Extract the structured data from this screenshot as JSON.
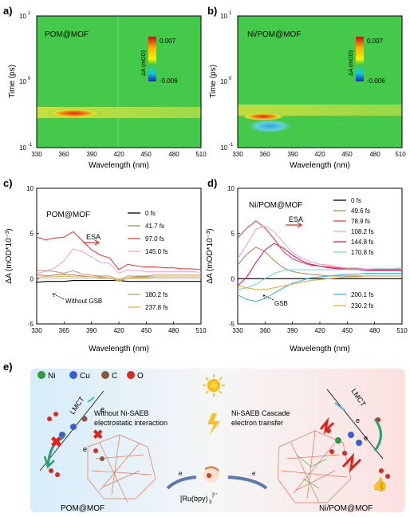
{
  "panel_labels": [
    "a)",
    "b)",
    "c)",
    "d)",
    "e)"
  ],
  "colors": {
    "map_bg": "#45c94a",
    "trace_0fs": "#000000",
    "trace_41": "#b58a5a",
    "trace_97": "#e8443a",
    "trace_145": "#f2a6d6",
    "trace_180": "#c8a070",
    "trace_237": "#e0b040",
    "d_49": "#b58a5a",
    "d_78": "#e8443a",
    "d_108": "#f1a1d3",
    "d_144": "#d81b7a",
    "d_170": "#7ad3d6",
    "d_200": "#3ab7e0",
    "d_230": "#e0b040"
  },
  "panel_a": {
    "label": "POM@MOF",
    "ylabel": "Time (ps)",
    "xlabel": "Wavelength (nm)",
    "xticks": [
      "330",
      "360",
      "390",
      "420",
      "450",
      "480",
      "510"
    ],
    "yticks": [
      "10",
      "10",
      "10"
    ],
    "yexp": [
      "1",
      "0",
      "-1"
    ],
    "cbar_label": "ΔA (mOD)",
    "cbar_max": "0.007",
    "cbar_min": "-0.006"
  },
  "panel_b": {
    "label": "Ni/POM@MOF",
    "ylabel": "Time (ps)",
    "xlabel": "Wavelength (nm)",
    "xticks": [
      "330",
      "360",
      "390",
      "420",
      "450",
      "480",
      "510"
    ],
    "yticks": [
      "10",
      "10",
      "10"
    ],
    "yexp": [
      "1",
      "0",
      "-1"
    ],
    "cbar_label": "ΔA (mOD)",
    "cbar_max": "0.007",
    "cbar_min": "-0.006"
  },
  "chart_data": [
    {
      "type": "heatmap",
      "title": "POM@MOF",
      "xlabel": "Wavelength (nm)",
      "ylabel": "Time (ps)",
      "xlim": [
        330,
        510
      ],
      "ylim": [
        0.1,
        10
      ],
      "y_scale": "log",
      "colorbar_range": [
        -0.006,
        0.007
      ],
      "features": [
        {
          "center_nm": 375,
          "center_ps": 0.33,
          "sign": "positive"
        }
      ]
    },
    {
      "type": "heatmap",
      "title": "Ni/POM@MOF",
      "xlabel": "Wavelength (nm)",
      "ylabel": "Time (ps)",
      "xlim": [
        330,
        510
      ],
      "ylim": [
        0.1,
        10
      ],
      "y_scale": "log",
      "colorbar_range": [
        -0.006,
        0.007
      ],
      "features": [
        {
          "center_nm": 350,
          "center_ps": 0.3,
          "sign": "positive"
        },
        {
          "center_nm": 365,
          "center_ps": 0.25,
          "sign": "negative"
        }
      ]
    },
    {
      "type": "line",
      "title": "POM@MOF",
      "xlabel": "Wavelength (nm)",
      "ylabel": "ΔA (mOD*10⁻³)",
      "xlim": [
        330,
        510
      ],
      "ylim": [
        -5,
        10
      ],
      "xticks": [
        "330",
        "365",
        "390",
        "420",
        "450",
        "480",
        "510"
      ],
      "yticks": [
        "-5",
        "0",
        "5",
        "10"
      ],
      "annotations": [
        "ESA",
        "Without GSB"
      ],
      "x": [
        330,
        340,
        350,
        360,
        370,
        380,
        390,
        400,
        410,
        420,
        430,
        440,
        450,
        460,
        470,
        480,
        490,
        500,
        510
      ],
      "series": [
        {
          "name": "0 fs",
          "values": [
            -0.4,
            -0.3,
            -0.3,
            -0.3,
            -0.2,
            -0.2,
            -0.2,
            -0.2,
            -0.2,
            -0.2,
            -0.3,
            -0.3,
            -0.3,
            -0.3,
            -0.3,
            -0.3,
            -0.3,
            -0.3,
            -0.3
          ]
        },
        {
          "name": "41.7 fs",
          "values": [
            0.5,
            0.3,
            0.4,
            0.5,
            0.4,
            0.3,
            0.2,
            0.2,
            0.1,
            -0.3,
            0.1,
            0.2,
            0.2,
            0.2,
            0.2,
            0.2,
            0.2,
            0.2,
            0.2
          ]
        },
        {
          "name": "97.0 fs",
          "values": [
            4.6,
            4.3,
            4.5,
            4.6,
            5.2,
            4.2,
            3.2,
            2.6,
            2.3,
            1.0,
            1.6,
            1.4,
            1.3,
            1.3,
            1.2,
            1.2,
            1.1,
            1.1,
            1.0
          ]
        },
        {
          "name": "145.0 fs",
          "values": [
            0.6,
            0.8,
            1.2,
            2.0,
            3.3,
            3.0,
            2.4,
            1.8,
            1.7,
            0.6,
            1.0,
            0.9,
            0.8,
            0.8,
            0.8,
            0.8,
            0.8,
            0.8,
            0.7
          ]
        },
        {
          "name": "180.2 fs",
          "values": [
            0.9,
            0.9,
            0.8,
            0.6,
            0.9,
            0.5,
            0.4,
            0.3,
            0.3,
            -0.1,
            0.3,
            0.3,
            0.3,
            0.4,
            0.4,
            0.4,
            0.4,
            0.4,
            0.4
          ]
        },
        {
          "name": "237.8 fs",
          "values": [
            0.2,
            0.2,
            0.2,
            0.3,
            0.2,
            0.2,
            0.2,
            0.1,
            0.1,
            -0.2,
            0.1,
            0.1,
            0.1,
            0.2,
            0.2,
            0.2,
            0.2,
            0.2,
            0.2
          ]
        }
      ]
    },
    {
      "type": "line",
      "title": "Ni/POM@MOF",
      "xlabel": "Wavelength (nm)",
      "ylabel": "ΔA (mOD*10⁻³)",
      "xlim": [
        330,
        510
      ],
      "ylim": [
        -5,
        10
      ],
      "xticks": [
        "330",
        "360",
        "390",
        "420",
        "450",
        "480",
        "510"
      ],
      "yticks": [
        "-5",
        "0",
        "5",
        "10"
      ],
      "annotations": [
        "ESA",
        "GSB"
      ],
      "x": [
        330,
        340,
        350,
        360,
        370,
        380,
        390,
        400,
        410,
        420,
        430,
        440,
        450,
        460,
        470,
        480,
        490,
        500,
        510
      ],
      "series": [
        {
          "name": "0 fs",
          "values": [
            0.0,
            0.0,
            0.0,
            0.0,
            0.0,
            0.0,
            0.0,
            0.0,
            0.0,
            0.0,
            0.0,
            0.0,
            0.0,
            0.0,
            0.0,
            0.0,
            0.0,
            0.0,
            0.0
          ]
        },
        {
          "name": "49.6 fs",
          "values": [
            1.5,
            2.7,
            3.5,
            3.0,
            2.0,
            1.2,
            0.8,
            0.6,
            0.5,
            0.4,
            0.3,
            0.3,
            0.3,
            0.3,
            0.3,
            0.3,
            0.3,
            0.3,
            0.3
          ]
        },
        {
          "name": "78.9 fs",
          "values": [
            4.5,
            5.6,
            6.4,
            5.6,
            4.4,
            3.0,
            2.2,
            1.8,
            1.5,
            1.4,
            1.3,
            1.2,
            1.1,
            1.1,
            1.0,
            1.0,
            1.0,
            1.0,
            1.0
          ]
        },
        {
          "name": "108.2 fs",
          "values": [
            2.2,
            3.8,
            5.5,
            5.8,
            5.2,
            4.0,
            2.9,
            2.3,
            1.9,
            1.6,
            1.5,
            1.3,
            1.2,
            1.2,
            1.1,
            1.1,
            1.1,
            1.1,
            1.1
          ]
        },
        {
          "name": "144.8 fs",
          "values": [
            -0.8,
            0.2,
            1.8,
            3.2,
            3.9,
            3.4,
            2.6,
            2.0,
            1.6,
            1.4,
            1.2,
            1.1,
            1.0,
            1.0,
            0.9,
            0.9,
            0.9,
            0.9,
            0.9
          ]
        },
        {
          "name": "170.8 fs",
          "values": [
            -1.2,
            -1.0,
            -0.6,
            0.0,
            0.6,
            0.9,
            1.0,
            1.0,
            1.0,
            1.0,
            1.0,
            1.0,
            1.0,
            1.0,
            1.0,
            1.1,
            1.1,
            1.1,
            1.2
          ]
        },
        {
          "name": "200.1 fs",
          "values": [
            -1.8,
            -2.3,
            -2.5,
            -2.2,
            -1.6,
            -1.0,
            -0.5,
            -0.2,
            0.1,
            0.2,
            0.3,
            0.4,
            0.5,
            0.5,
            0.6,
            0.6,
            0.6,
            0.6,
            0.6
          ]
        },
        {
          "name": "230.2 fs",
          "values": [
            -0.8,
            -1.0,
            -1.2,
            -1.2,
            -1.0,
            -0.8,
            -0.6,
            -0.4,
            -0.2,
            -0.1,
            0.0,
            0.1,
            0.2,
            0.2,
            0.3,
            0.3,
            0.3,
            0.3,
            0.3
          ]
        }
      ]
    }
  ],
  "panel_e": {
    "legend": [
      {
        "name": "Ni",
        "color": "#2e9c3e"
      },
      {
        "name": "Cu",
        "color": "#3a5fd0"
      },
      {
        "name": "C",
        "color": "#8a5a3a"
      },
      {
        "name": "O",
        "color": "#d92a20"
      }
    ],
    "left_lmct": "LMCT",
    "right_lmct": "LMCT",
    "electron": "e",
    "without_line1": "Without  Ni-SAEB",
    "without_line2": "electrostatic interaction",
    "cascade_line1": "Ni-SAEB Cascade",
    "cascade_line2": "electron transfer",
    "left_label": "POM@MOF",
    "right_label": "Ni/POM@MOF",
    "ru_label": "[Ru(bpy)",
    "ru_sub": "3",
    "ru_sup": "]²⁺"
  }
}
